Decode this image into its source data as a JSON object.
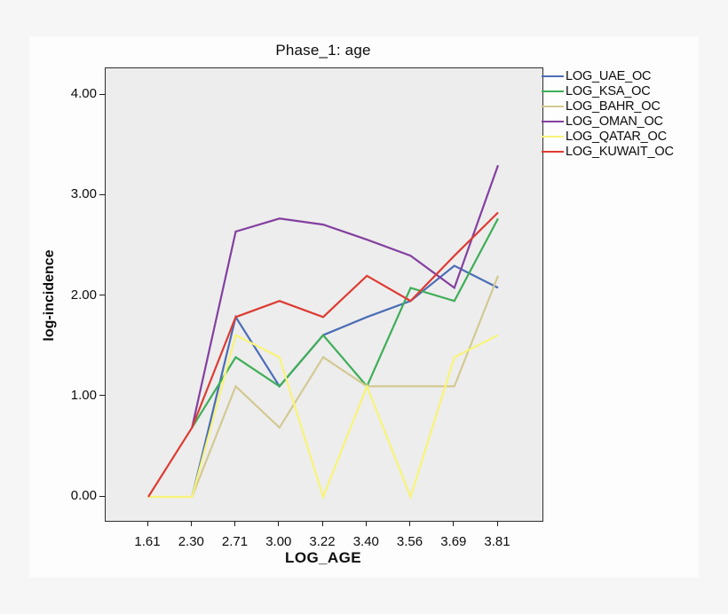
{
  "window": {
    "outer_background": "#f6f6f6",
    "canvas_background": "#fdfdfd"
  },
  "chart_data": {
    "type": "line",
    "title": "Phase_1: age",
    "xlabel": "LOG_AGE",
    "ylabel": "log-incidence",
    "plot_background": "#ededed",
    "grid": false,
    "legend_position": "right-top-outside",
    "x_tick_labels": [
      "1.61",
      "2.30",
      "2.71",
      "3.00",
      "3.22",
      "3.40",
      "3.56",
      "3.69",
      "3.81"
    ],
    "y_tick_labels": [
      "0.00",
      "1.00",
      "2.00",
      "3.00",
      "4.00"
    ],
    "y_tick_values": [
      0,
      1,
      2,
      3,
      4
    ],
    "ylim": [
      -0.3,
      4.3
    ],
    "series": [
      {
        "name": "LOG_UAE_OC",
        "color": "#4a6db6",
        "values": [
          null,
          0.0,
          1.79,
          1.1,
          1.61,
          1.79,
          1.95,
          2.3,
          2.08
        ]
      },
      {
        "name": "LOG_KSA_OC",
        "color": "#3fae58",
        "values": [
          null,
          0.69,
          1.39,
          1.1,
          1.61,
          1.1,
          2.08,
          1.95,
          2.77
        ]
      },
      {
        "name": "LOG_BAHR_OC",
        "color": "#d3c992",
        "values": [
          null,
          0.0,
          1.1,
          0.69,
          1.39,
          1.1,
          1.1,
          1.1,
          2.2
        ]
      },
      {
        "name": "LOG_OMAN_OC",
        "color": "#83409f",
        "values": [
          null,
          0.69,
          2.64,
          2.77,
          2.71,
          2.56,
          2.4,
          2.08,
          3.3
        ]
      },
      {
        "name": "LOG_QATAR_OC",
        "color": "#f8f478",
        "values": [
          0.0,
          0.0,
          1.61,
          1.39,
          0.0,
          1.1,
          0.0,
          1.39,
          1.61
        ]
      },
      {
        "name": "LOG_KUWAIT_OC",
        "color": "#dd3c33",
        "values": [
          0.0,
          0.69,
          1.79,
          1.95,
          1.79,
          2.2,
          1.95,
          2.4,
          2.83
        ]
      }
    ]
  }
}
